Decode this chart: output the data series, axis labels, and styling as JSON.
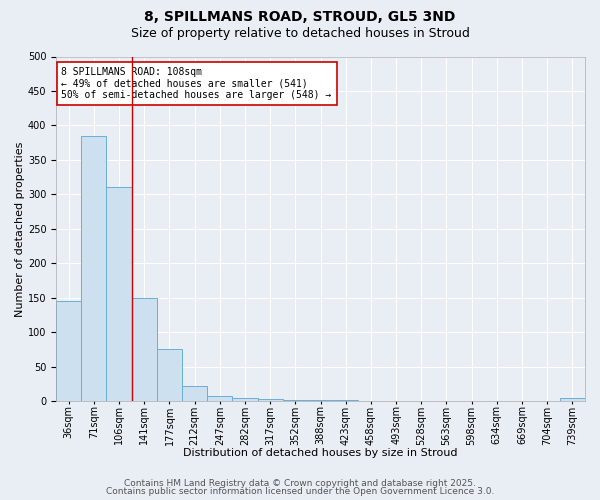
{
  "title": "8, SPILLMANS ROAD, STROUD, GL5 3ND",
  "subtitle": "Size of property relative to detached houses in Stroud",
  "xlabel": "Distribution of detached houses by size in Stroud",
  "ylabel": "Number of detached properties",
  "bin_labels": [
    "36sqm",
    "71sqm",
    "106sqm",
    "141sqm",
    "177sqm",
    "212sqm",
    "247sqm",
    "282sqm",
    "317sqm",
    "352sqm",
    "388sqm",
    "423sqm",
    "458sqm",
    "493sqm",
    "528sqm",
    "563sqm",
    "598sqm",
    "634sqm",
    "669sqm",
    "704sqm",
    "739sqm"
  ],
  "bar_values": [
    145,
    385,
    310,
    150,
    75,
    22,
    8,
    5,
    3,
    2,
    1,
    1,
    0,
    0,
    0,
    0,
    0,
    0,
    0,
    0,
    5
  ],
  "bar_color": "#cde0f0",
  "bar_edge_color": "#6aaed6",
  "vline_bin": 2,
  "vline_color": "#cc0000",
  "annotation_text": "8 SPILLMANS ROAD: 108sqm\n← 49% of detached houses are smaller (541)\n50% of semi-detached houses are larger (548) →",
  "annotation_box_color": "#ffffff",
  "annotation_box_edge": "#cc0000",
  "ylim": [
    0,
    500
  ],
  "yticks": [
    0,
    50,
    100,
    150,
    200,
    250,
    300,
    350,
    400,
    450,
    500
  ],
  "footer1": "Contains HM Land Registry data © Crown copyright and database right 2025.",
  "footer2": "Contains public sector information licensed under the Open Government Licence 3.0.",
  "bg_color": "#e8eef4",
  "plot_bg_color": "#e8eef4",
  "grid_color": "#ffffff",
  "title_fontsize": 10,
  "subtitle_fontsize": 9,
  "axis_label_fontsize": 8,
  "tick_fontsize": 7,
  "annotation_fontsize": 7,
  "footer_fontsize": 6.5
}
